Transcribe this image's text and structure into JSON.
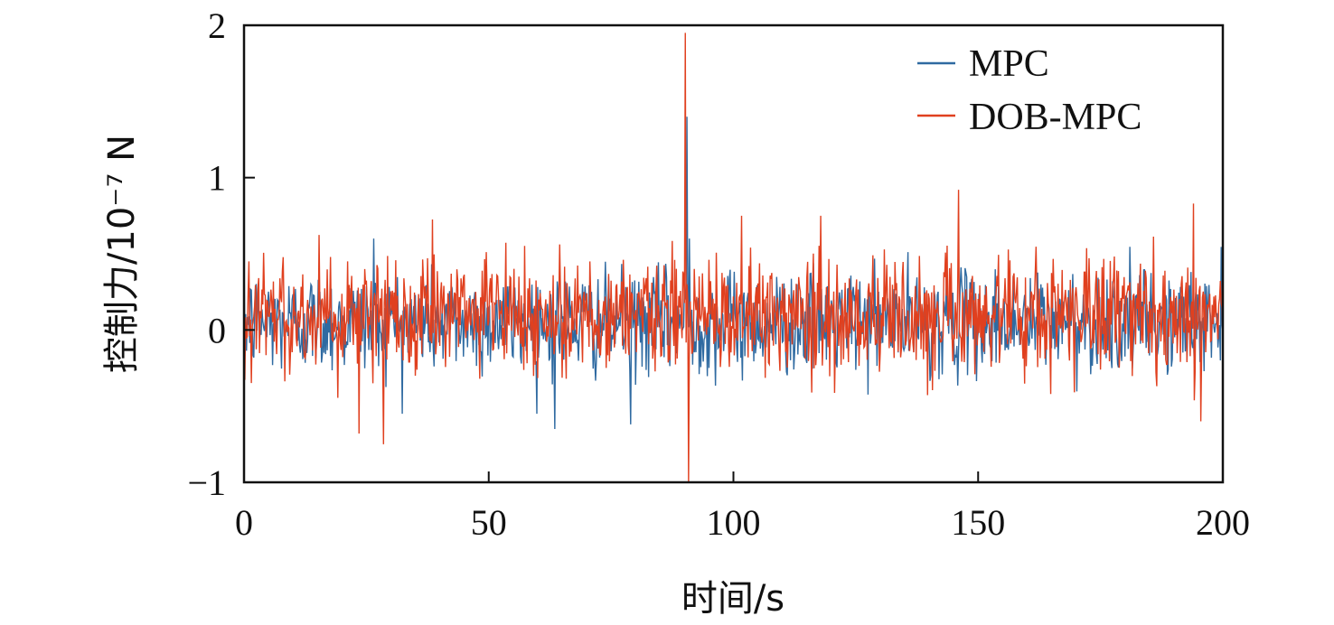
{
  "chart_data": {
    "type": "line",
    "xlabel": "时间/s",
    "ylabel": "控制力/10⁻⁷ N",
    "xlim": [
      0,
      200
    ],
    "ylim": [
      -1,
      2
    ],
    "xticks": [
      "0",
      "50",
      "100",
      "150",
      "200"
    ],
    "yticks": [
      "−1",
      "0",
      "1",
      "2"
    ],
    "legend_position": "top-right",
    "grid": false,
    "series": [
      {
        "name": "MPC",
        "color": "#2f6aa1",
        "description_stats": {
          "mean": 0.05,
          "amplitude": 0.3,
          "n": 1200
        },
        "peaks": [
          {
            "x": 90.5,
            "y": 1.4
          },
          {
            "x": 91.0,
            "y": 0.6
          },
          {
            "x": 26.5,
            "y": 0.6
          },
          {
            "x": 63.5,
            "y": -0.65
          },
          {
            "x": 79.0,
            "y": -0.62
          }
        ]
      },
      {
        "name": "DOB-MPC",
        "color": "#e0401f",
        "description_stats": {
          "mean": 0.1,
          "amplitude": 0.35,
          "n": 1200
        },
        "peaks": [
          {
            "x": 90.2,
            "y": 1.95
          },
          {
            "x": 90.8,
            "y": -1.0
          },
          {
            "x": 146.0,
            "y": 0.92
          },
          {
            "x": 194.0,
            "y": 0.83
          },
          {
            "x": 195.5,
            "y": -0.6
          },
          {
            "x": 28.5,
            "y": -0.75
          },
          {
            "x": 23.5,
            "y": -0.68
          },
          {
            "x": 1.0,
            "y": 0.45
          }
        ]
      }
    ]
  }
}
